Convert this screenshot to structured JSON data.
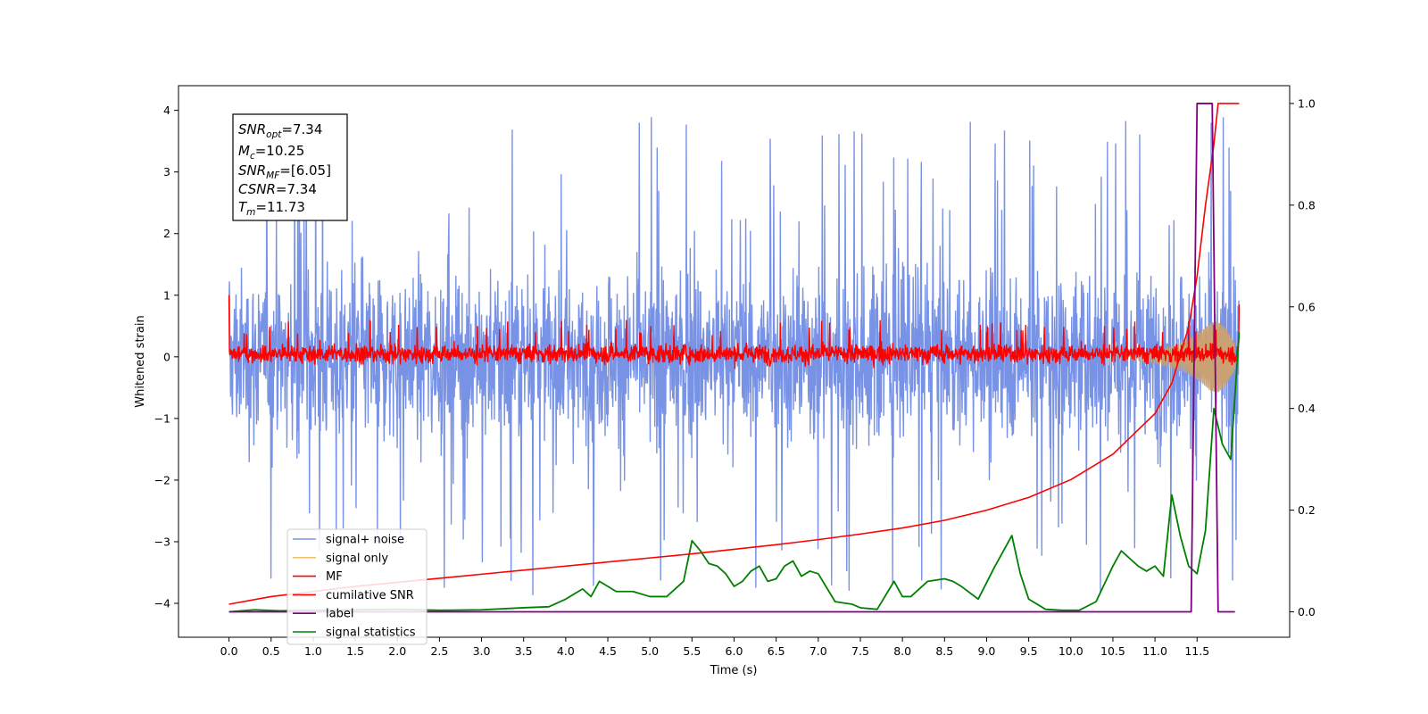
{
  "chart_data": {
    "type": "line",
    "xlabel": "Time (s)",
    "ylabel": "Whitened strain",
    "xlim": [
      -0.6,
      12.6
    ],
    "ylim": [
      -4.55,
      4.4
    ],
    "ylim_right": [
      -0.05,
      1.035
    ],
    "x_ticks": [
      0.0,
      0.5,
      1.0,
      1.5,
      2.0,
      2.5,
      3.0,
      3.5,
      4.0,
      4.5,
      5.0,
      5.5,
      6.0,
      6.5,
      7.0,
      7.5,
      8.0,
      8.5,
      9.0,
      9.5,
      10.0,
      10.5,
      11.0,
      11.5
    ],
    "x_tick_labels": [
      "0.0",
      "0.5",
      "1.0",
      "1.5",
      "2.0",
      "2.5",
      "3.0",
      "3.5",
      "4.0",
      "4.5",
      "5.0",
      "5.5",
      "6.0",
      "6.5",
      "7.0",
      "7.5",
      "8.0",
      "8.5",
      "9.0",
      "9.5",
      "10.0",
      "10.5",
      "11.0",
      "11.5"
    ],
    "y_ticks": [
      -4,
      -3,
      -2,
      -1,
      0,
      1,
      2,
      3,
      4
    ],
    "y_tick_labels": [
      "−4",
      "−3",
      "−2",
      "−1",
      "0",
      "1",
      "2",
      "3",
      "4"
    ],
    "y2_ticks": [
      0.0,
      0.2,
      0.4,
      0.6,
      0.8,
      1.0
    ],
    "y2_tick_labels": [
      "0.0",
      "0.2",
      "0.4",
      "0.6",
      "0.8",
      "1.0"
    ],
    "grid": false,
    "legend_position": "bottom-left",
    "series": [
      {
        "name": "signal+ noise",
        "axis": "left",
        "color": "#7893e6",
        "style": "dense-noise",
        "x_range": [
          0.0,
          12.0
        ],
        "typical_range": [
          -1.8,
          1.8
        ],
        "max_peak": 4.0,
        "min_peak": -4.1
      },
      {
        "name": "signal only",
        "axis": "left",
        "color": "#f5c26b",
        "style": "chirp-envelope",
        "x": [
          10.5,
          10.8,
          11.0,
          11.2,
          11.4,
          11.55,
          11.65,
          11.75,
          11.85,
          11.95
        ],
        "amplitude": [
          0.03,
          0.06,
          0.1,
          0.17,
          0.28,
          0.42,
          0.55,
          0.58,
          0.45,
          0.2
        ]
      },
      {
        "name": "MF",
        "axis": "left",
        "color": "#ff0000",
        "style": "dense-noise",
        "x_range": [
          0.0,
          12.0
        ],
        "typical_range": [
          -0.2,
          0.3
        ],
        "max_peak": 0.6,
        "min_peak": -0.25,
        "start_value": 1.0,
        "end_value": 0.85
      },
      {
        "name": "cumilative SNR",
        "axis": "right",
        "color": "#ff0000",
        "x": [
          0.0,
          0.5,
          1.0,
          1.5,
          2.0,
          2.5,
          3.0,
          3.5,
          4.0,
          4.5,
          5.0,
          5.5,
          6.0,
          6.5,
          7.0,
          7.5,
          8.0,
          8.5,
          9.0,
          9.5,
          10.0,
          10.5,
          11.0,
          11.2,
          11.4,
          11.5,
          11.6,
          11.7,
          11.75,
          11.8,
          12.0
        ],
        "values": [
          0.015,
          0.03,
          0.04,
          0.05,
          0.058,
          0.066,
          0.074,
          0.082,
          0.09,
          0.098,
          0.106,
          0.114,
          0.123,
          0.132,
          0.142,
          0.153,
          0.165,
          0.18,
          0.2,
          0.225,
          0.26,
          0.31,
          0.39,
          0.45,
          0.56,
          0.66,
          0.8,
          0.92,
          1.0,
          1.0,
          1.0
        ]
      },
      {
        "name": "label",
        "axis": "right",
        "color": "#800080",
        "x": [
          0.0,
          11.43,
          11.5,
          11.68,
          11.75,
          11.95
        ],
        "values": [
          0.0,
          0.0,
          1.0,
          1.0,
          0.0,
          0.0
        ]
      },
      {
        "name": "signal statistics",
        "axis": "right",
        "color": "#008000",
        "x": [
          0.0,
          0.3,
          0.6,
          1.0,
          1.5,
          2.0,
          2.5,
          3.0,
          3.5,
          3.8,
          4.0,
          4.2,
          4.3,
          4.4,
          4.5,
          4.6,
          4.8,
          5.0,
          5.2,
          5.4,
          5.5,
          5.6,
          5.7,
          5.8,
          5.9,
          6.0,
          6.1,
          6.2,
          6.3,
          6.4,
          6.5,
          6.6,
          6.7,
          6.8,
          6.9,
          7.0,
          7.2,
          7.4,
          7.5,
          7.7,
          7.9,
          8.0,
          8.1,
          8.3,
          8.5,
          8.6,
          8.7,
          8.9,
          9.1,
          9.3,
          9.4,
          9.5,
          9.7,
          9.9,
          10.1,
          10.3,
          10.5,
          10.6,
          10.8,
          10.9,
          11.0,
          11.1,
          11.2,
          11.3,
          11.4,
          11.5,
          11.6,
          11.7,
          11.8,
          11.9,
          12.0
        ],
        "values": [
          0.0,
          0.004,
          0.002,
          0.003,
          0.004,
          0.005,
          0.003,
          0.004,
          0.008,
          0.01,
          0.025,
          0.045,
          0.03,
          0.06,
          0.05,
          0.04,
          0.04,
          0.03,
          0.03,
          0.06,
          0.14,
          0.12,
          0.095,
          0.09,
          0.075,
          0.05,
          0.06,
          0.08,
          0.09,
          0.06,
          0.065,
          0.09,
          0.1,
          0.07,
          0.08,
          0.075,
          0.02,
          0.015,
          0.008,
          0.005,
          0.06,
          0.03,
          0.03,
          0.06,
          0.065,
          0.06,
          0.05,
          0.025,
          0.09,
          0.15,
          0.075,
          0.025,
          0.005,
          0.003,
          0.003,
          0.02,
          0.09,
          0.12,
          0.09,
          0.08,
          0.09,
          0.07,
          0.23,
          0.15,
          0.09,
          0.075,
          0.16,
          0.4,
          0.33,
          0.3,
          0.55
        ]
      }
    ],
    "annotation": {
      "lines": [
        {
          "var": "SNR",
          "sub": "opt",
          "value": "=7.34"
        },
        {
          "var": "M",
          "sub": "c",
          "value": "=10.25"
        },
        {
          "var": "SNR",
          "sub": "MF",
          "value": "=[6.05]"
        },
        {
          "var": "CSNR",
          "sub": "",
          "value": "=7.34"
        },
        {
          "var": "T",
          "sub": "m",
          "value": "=11.73"
        }
      ]
    }
  }
}
